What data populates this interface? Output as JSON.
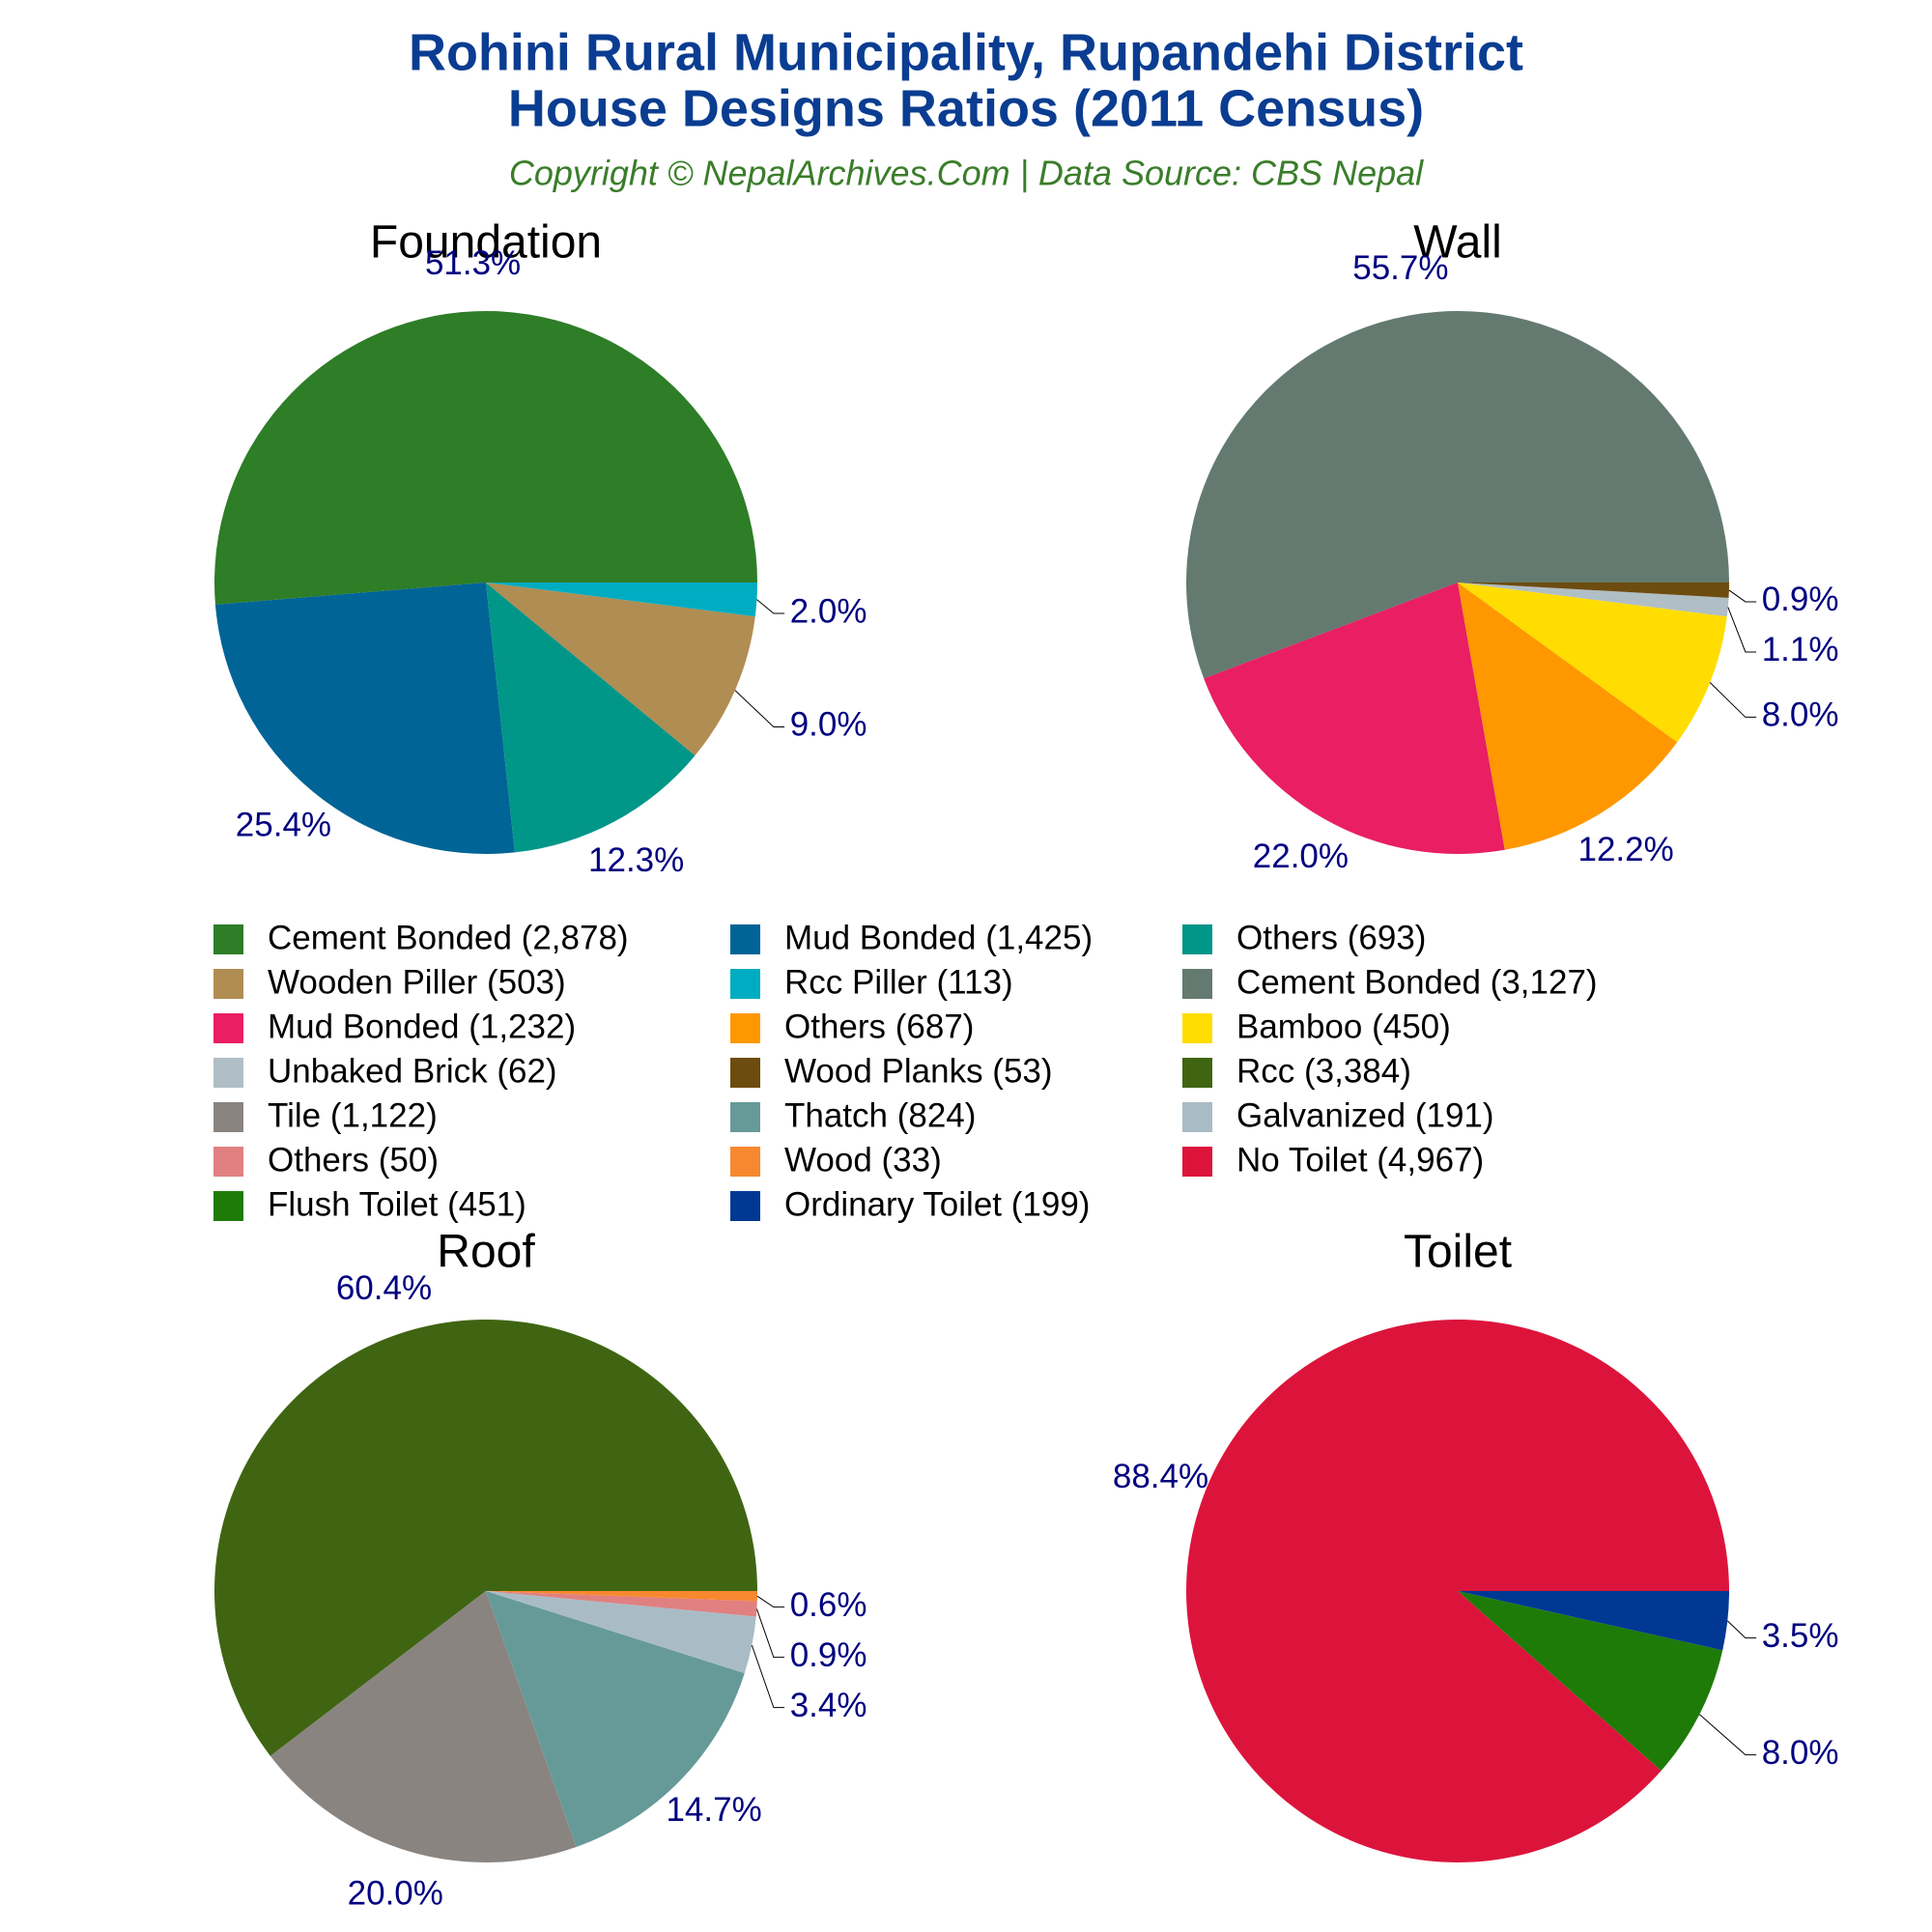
{
  "title": [
    "Rohini Rural Municipality, Rupandehi District",
    "House Designs Ratios (2011 Census)"
  ],
  "subtitle": "Copyright © NepalArchives.Com | Data Source: CBS Nepal",
  "chart_data": [
    {
      "type": "pie",
      "title": "Foundation",
      "categories": [
        "Cement Bonded (2,878)",
        "Mud Bonded (1,425)",
        "Others (693)",
        "Wooden Piller (503)",
        "Rcc Piller (113)"
      ],
      "values": [
        51.3,
        25.4,
        12.3,
        9.0,
        2.0
      ],
      "value_labels": [
        "51.3%",
        "25.4%",
        "12.3%",
        "9.0%",
        "2.0%"
      ],
      "colors": [
        "#2e7d27",
        "#006496",
        "#009688",
        "#b08d52",
        "#00acc1"
      ]
    },
    {
      "type": "pie",
      "title": "Wall",
      "categories": [
        "Cement Bonded (3,127)",
        "Mud Bonded (1,232)",
        "Others (687)",
        "Bamboo (450)",
        "Unbaked Brick (62)",
        "Wood Planks (53)"
      ],
      "values": [
        55.7,
        22.0,
        12.2,
        8.0,
        1.1,
        0.9
      ],
      "value_labels": [
        "55.7%",
        "22.0%",
        "12.2%",
        "8.0%",
        "1.1%",
        "0.9%"
      ],
      "colors": [
        "#647a70",
        "#e91e63",
        "#ff9800",
        "#ffdd00",
        "#b0bec5",
        "#6d4c0f"
      ]
    },
    {
      "type": "pie",
      "title": "Roof",
      "categories": [
        "Rcc (3,384)",
        "Tile (1,122)",
        "Thatch (824)",
        "Galvanized (191)",
        "Others (50)",
        "Wood (33)"
      ],
      "values": [
        60.4,
        20.0,
        14.7,
        3.4,
        0.9,
        0.6
      ],
      "value_labels": [
        "60.4%",
        "20.0%",
        "14.7%",
        "3.4%",
        "0.9%",
        "0.6%"
      ],
      "colors": [
        "#3f6512",
        "#8a8480",
        "#669a98",
        "#a9bcc5",
        "#e08080",
        "#f7882f"
      ]
    },
    {
      "type": "pie",
      "title": "Toilet",
      "categories": [
        "No Toilet (4,967)",
        "Flush Toilet (451)",
        "Ordinary Toilet (199)"
      ],
      "values": [
        88.4,
        8.0,
        3.5
      ],
      "value_labels": [
        "88.4%",
        "8.0%",
        "3.5%"
      ],
      "colors": [
        "#dc143c",
        "#1e7b08",
        "#003893"
      ]
    }
  ]
}
